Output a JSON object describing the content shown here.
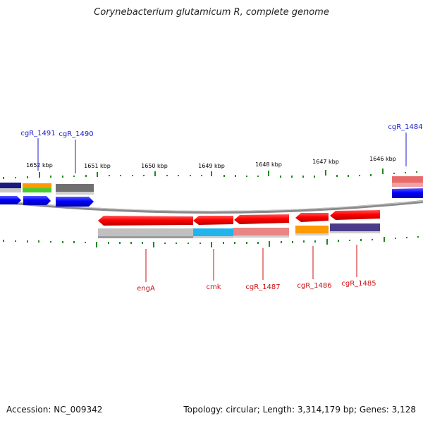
{
  "title": "Corynebacterium glutamicum R, complete genome",
  "footer": {
    "accession": "Accession: NC_009342",
    "summary": "Topology: circular; Length: 3,314,179 bp; Genes: 3,128"
  },
  "scale_labels": [
    "1652 kbp",
    "1651 kbp",
    "1650 kbp",
    "1649 kbp",
    "1648 kbp",
    "1647 kbp",
    "1646 kbp"
  ],
  "top_gene_labels": [
    "cgR_1491",
    "cgR_1490",
    "cgR_1484"
  ],
  "bottom_gene_labels": [
    "engA",
    "cmk",
    "cgR_1487",
    "cgR_1486",
    "cgR_1485"
  ],
  "colors": {
    "forward_label": "#1a1acc",
    "reverse_label": "#cc1111",
    "tick": "#1e8a1e",
    "backbone": "#808080"
  }
}
